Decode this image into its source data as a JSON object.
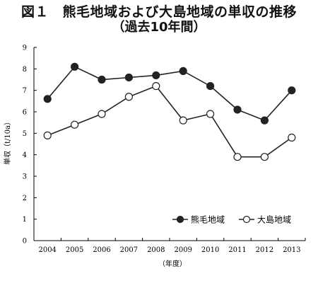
{
  "figure": {
    "title": "図１　熊毛地域および大島地域の単収の推移",
    "subtitle": "（過去10年間）"
  },
  "chart_data": {
    "type": "line",
    "title": "図１　熊毛地域および大島地域の単収の推移",
    "subtitle": "（過去10年間）",
    "xlabel": "（年度）",
    "ylabel": "単収（t/10a）",
    "categories": [
      "2004",
      "2005",
      "2006",
      "2007",
      "2008",
      "2009",
      "2010",
      "2011",
      "2012",
      "2013"
    ],
    "ylim": [
      0,
      9
    ],
    "yticks": [
      0,
      1,
      2,
      3,
      4,
      5,
      6,
      7,
      8,
      9
    ],
    "grid": false,
    "legend_position": "lower-right",
    "series": [
      {
        "name": "熊毛地域",
        "marker": "filled-circle",
        "color": "#222222",
        "values": [
          6.6,
          8.1,
          7.5,
          7.6,
          7.7,
          7.9,
          7.2,
          6.1,
          5.6,
          7.0
        ]
      },
      {
        "name": "大島地域",
        "marker": "open-circle",
        "color": "#222222",
        "values": [
          4.9,
          5.4,
          5.9,
          6.7,
          7.2,
          5.6,
          5.9,
          3.9,
          3.9,
          4.8
        ]
      }
    ]
  }
}
